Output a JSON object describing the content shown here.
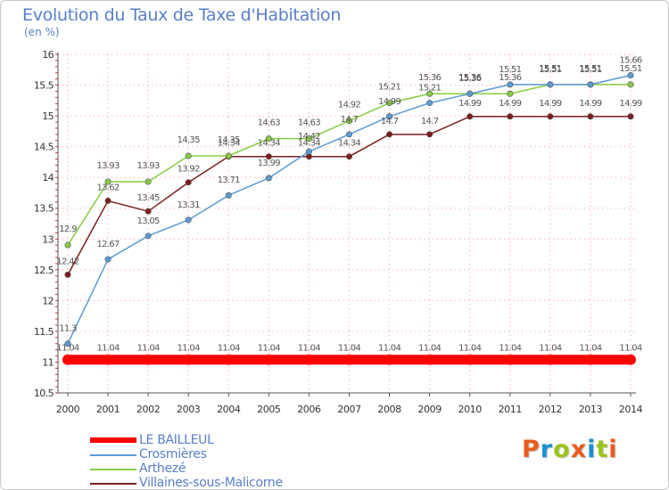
{
  "header": {
    "title": "Evolution du Taux de Taxe d'Habitation",
    "subtitle": "(en %)"
  },
  "logo": {
    "text": "Proxiti",
    "colors": [
      "#e85d1e",
      "#1a8fd6",
      "#9ac31c",
      "#e85d1e",
      "#1a8fd6",
      "#9ac31c",
      "#e85d1e"
    ]
  },
  "colors": {
    "grid": "#ff9a9a",
    "axis": "#555555",
    "tick_text": "#333333",
    "label_text": "#555555"
  },
  "chart_data": {
    "type": "line",
    "title": "Evolution du Taux de Taxe d'Habitation",
    "subtitle": "(en %)",
    "xlabel": "",
    "ylabel": "",
    "x": [
      "2000",
      "2001",
      "2002",
      "2003",
      "2004",
      "2005",
      "2006",
      "2007",
      "2008",
      "2009",
      "2010",
      "2011",
      "2012",
      "2013",
      "2014"
    ],
    "ylim": [
      10.5,
      16
    ],
    "yticks": [
      10.5,
      11,
      11.5,
      12,
      12.5,
      13,
      13.5,
      14,
      14.5,
      15,
      15.5,
      16
    ],
    "ytick_labels": [
      "10.5",
      "11",
      "11.5",
      "12",
      "12.5",
      "13",
      "13.5",
      "14",
      "14.5",
      "15",
      "15.5",
      "16"
    ],
    "grid": true,
    "legend_position": "bottom-left",
    "series": [
      {
        "name": "LE BAILLEUL",
        "color": "#ff0000",
        "values": [
          11.04,
          11.04,
          11.04,
          11.04,
          11.04,
          11.04,
          11.04,
          11.04,
          11.04,
          11.04,
          11.04,
          11.04,
          11.04,
          11.04,
          11.04
        ],
        "labels": [
          "11.04",
          "11.04",
          "11.04",
          "11.04",
          "11.04",
          "11.04",
          "11.04",
          "11.04",
          "11.04",
          "11.04",
          "11.04",
          "11.04",
          "11.04",
          "11.04",
          "11.04"
        ]
      },
      {
        "name": "Crosmières",
        "color": "#5b9bd5",
        "values": [
          11.3,
          12.67,
          13.05,
          13.31,
          13.71,
          13.99,
          14.42,
          14.7,
          14.99,
          15.21,
          15.36,
          15.51,
          15.51,
          15.51,
          15.66
        ],
        "labels": [
          "11.3",
          "12.67",
          "13.05",
          "13.31",
          "13.71",
          "13.99",
          "14.42",
          "14.7",
          "14.99",
          "15.21",
          "15.36",
          "15.51",
          "15.51",
          "15.51",
          "15.66"
        ]
      },
      {
        "name": "Arthezé",
        "color": "#88cc44",
        "values": [
          12.9,
          13.93,
          13.93,
          14.35,
          14.35,
          14.63,
          14.63,
          14.92,
          15.21,
          15.36,
          15.36,
          15.36,
          15.51,
          15.51,
          15.51
        ],
        "labels": [
          "12.9",
          "13.93",
          "13.93",
          "14.35",
          "14.35",
          "14.63",
          "14.63",
          "14.92",
          "15.21",
          "15.36",
          "15.36",
          "15.36",
          "15.51",
          "15.51",
          "15.51"
        ]
      },
      {
        "name": "Villaines-sous-Malicorne",
        "color": "#7a1f1f",
        "values": [
          12.42,
          13.62,
          13.45,
          13.92,
          14.34,
          14.34,
          14.34,
          14.34,
          14.7,
          14.7,
          14.99,
          14.99,
          14.99,
          14.99,
          14.99
        ],
        "labels": [
          "12.42",
          "13.62",
          "13.45",
          "13.92",
          "14.34",
          "14.34",
          "14.34",
          "14.34",
          "14.7",
          "14.7",
          "14.99",
          "14.99",
          "14.99",
          "14.99",
          "14.99"
        ]
      }
    ]
  }
}
